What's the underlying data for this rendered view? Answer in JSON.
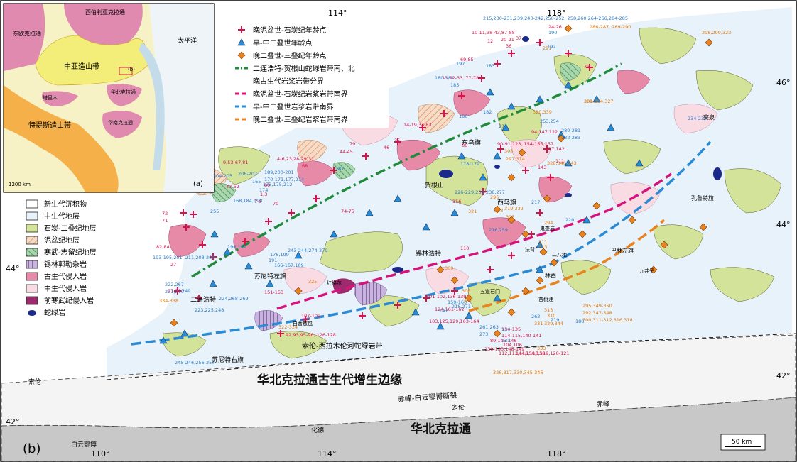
{
  "panel_b_label": "(b)",
  "panel_a_label": "(a)",
  "coords": {
    "top_114": "114°",
    "top_118": "118°",
    "bottom_110": "110°",
    "bottom_114": "114°",
    "bottom_118": "118°",
    "right_46": "46°",
    "right_44": "44°",
    "right_42": "42°",
    "left_44": "44°",
    "left_42": "42°"
  },
  "scale_bar": "50 km",
  "inset": {
    "labels": {
      "east_europe": "东欧克拉通",
      "siberia": "西伯利亚克拉通",
      "caoa": "中亚造山带",
      "pacific": "太平洋",
      "tethys": "特提斯造山带",
      "north_china": "华北克拉通",
      "south_china": "华南克拉通",
      "tarim": "塔里木",
      "scale": "1200 km"
    }
  },
  "legend_top": [
    {
      "icon": "red-cross",
      "label": "晚泥盆世-石炭纪年龄点"
    },
    {
      "icon": "blue-triangle",
      "label": "早-中二叠世年龄点"
    },
    {
      "icon": "orange-diamond",
      "label": "晚二叠世-三叠纪年龄点"
    },
    {
      "icon": "green-dashdot",
      "label": "二连浩特-贺根山蛇绿岩带南、北"
    },
    {
      "icon": "none",
      "label": "晚古生代岩浆岩带分界"
    },
    {
      "icon": "magenta-dash",
      "label": "晚泥盆世-石炭纪岩浆岩带南界"
    },
    {
      "icon": "blue-dash",
      "label": "早-中二叠世岩浆岩带南界"
    },
    {
      "icon": "orange-dash",
      "label": "晚二叠世-三叠纪岩浆岩带南界"
    }
  ],
  "legend_left": [
    {
      "icon": "cenozoic-swatch",
      "label": "新生代沉积物",
      "color": "#ffffff"
    },
    {
      "icon": "mesozoic-swatch",
      "label": "中生代地层",
      "color": "#e8f2fa"
    },
    {
      "icon": "carb-perm-swatch",
      "label": "石炭-二叠纪地层",
      "color": "#d4e39a"
    },
    {
      "icon": "devonian-swatch",
      "label": "泥盆纪地层",
      "color": "#f1c6a8"
    },
    {
      "icon": "cambrian-silurian-swatch",
      "label": "寒武-志留纪地层",
      "color": "#7fbf8a"
    },
    {
      "icon": "xilinhot-swatch",
      "label": "锡林郭勒杂岩",
      "color": "#b7a0cf"
    },
    {
      "icon": "paleozoic-intrusive-swatch",
      "label": "古生代侵入岩",
      "color": "#e78aa8"
    },
    {
      "icon": "mesozoic-intrusive-swatch",
      "label": "中生代侵入岩",
      "color": "#f9dbe4"
    },
    {
      "icon": "precambrian-swatch",
      "label": "前寒武纪侵入岩",
      "color": "#9c2b6e"
    },
    {
      "icon": "ophiolite-ellipse",
      "label": "蛇绿岩",
      "color": "#1a2a8a"
    }
  ],
  "places": {
    "dongwu": "东乌旗",
    "xiwu": "西乌旗",
    "hegen": "贺根山",
    "xilinhot": "锡林浩特",
    "sunitezuo": "苏尼特左旗",
    "erlian": "二连浩特",
    "sunite_right": "苏尼特右旗",
    "solon": "索伦",
    "hongger": "红格尔",
    "bayanaobao": "白音敖包",
    "wuliugou": "五道石门",
    "xingshuwa": "杏树洼",
    "linxi": "林西",
    "erbadi": "二八地",
    "bayinhua": "巴林左旗",
    "jiujingzi": "九井子",
    "tuquan": "突泉",
    "kaluteqi": "孔鲁特旗",
    "gaixi": "鬼查庙",
    "fahui": "法背",
    "chifeng": "赤峰",
    "duolun": "多伦",
    "huade": "化德",
    "baiyunebo": "白云鄂博"
  },
  "belts": {
    "solon_belt": "索伦-西拉木伦河蛇绿岩带",
    "accretion_margin": "华北克拉通古生代增生边缘",
    "fault": "赤峰-白云鄂博断裂",
    "nc_craton": "华北克拉通"
  },
  "age_labels_red": [
    "9,53-67,81",
    "4-6,23,28-29,31",
    "68",
    "72",
    "71",
    "82,84",
    "27",
    "97-100",
    "151-153",
    "92,93,95-96, 126-128",
    "107-109",
    "110",
    "124,161-162",
    "103,125,129,163-164",
    "89,145-146",
    "130-133,148-149",
    "14-19,34,83",
    "35",
    "46",
    "44-45",
    "79",
    "74-75",
    "69,85",
    "13,32-33, 77-78",
    "12",
    "36",
    "37",
    "10-11,38-43,87-88",
    "20-21",
    "24-26",
    "73",
    "111",
    "143",
    "94,147,122",
    "90-91,123, 154-155,157",
    "117,142",
    "156",
    "101-102,136-139",
    "80",
    "1,3",
    "7-8",
    "70",
    "47-52",
    "86",
    "104,106",
    "112,113,116,118,119,120-121",
    "114-115,140-141",
    "134-135",
    "144,150,158"
  ],
  "age_labels_blue": [
    "215,230-231,239,240-242,250-252, 258,260,264-266,284-285",
    "190",
    "192",
    "180-181",
    "185",
    "197",
    "183",
    "182",
    "213",
    "186",
    "187",
    "178-179",
    "226-229,236-238,277",
    "216,259",
    "220",
    "217",
    "234-235",
    "280-281",
    "282-283",
    "253,254",
    "206-207",
    "204-205",
    "165",
    "174",
    "168,184,198",
    "173,175,212",
    "170-171,177,214",
    "189,200-201",
    "193-195,201, 211,208-209",
    "196,172",
    "176,199",
    "166-167,169",
    "243-244,274-279",
    "222,267",
    "221,270",
    "249",
    "224,268-269",
    "223,225,248",
    "245-246,256-257",
    "247",
    "218,271",
    "159-160",
    "261,263",
    "273",
    "232",
    "233",
    "262",
    "219",
    "188",
    "191",
    "255"
  ],
  "age_labels_orange": [
    "286-287, 289-290",
    "298,299,323",
    "291",
    "301-304,327",
    "328,340-343",
    "320,339",
    "308",
    "319,332",
    "296",
    "297,314",
    "321",
    "305",
    "309",
    "306",
    "307",
    "325",
    "334-338",
    "322-324",
    "311",
    "313",
    "315",
    "310",
    "329,344",
    "331",
    "333",
    "295,349-350",
    "292,347-348",
    "300,311-312,316,318",
    "288",
    "293",
    "294",
    "326,317,330,345-346"
  ]
}
